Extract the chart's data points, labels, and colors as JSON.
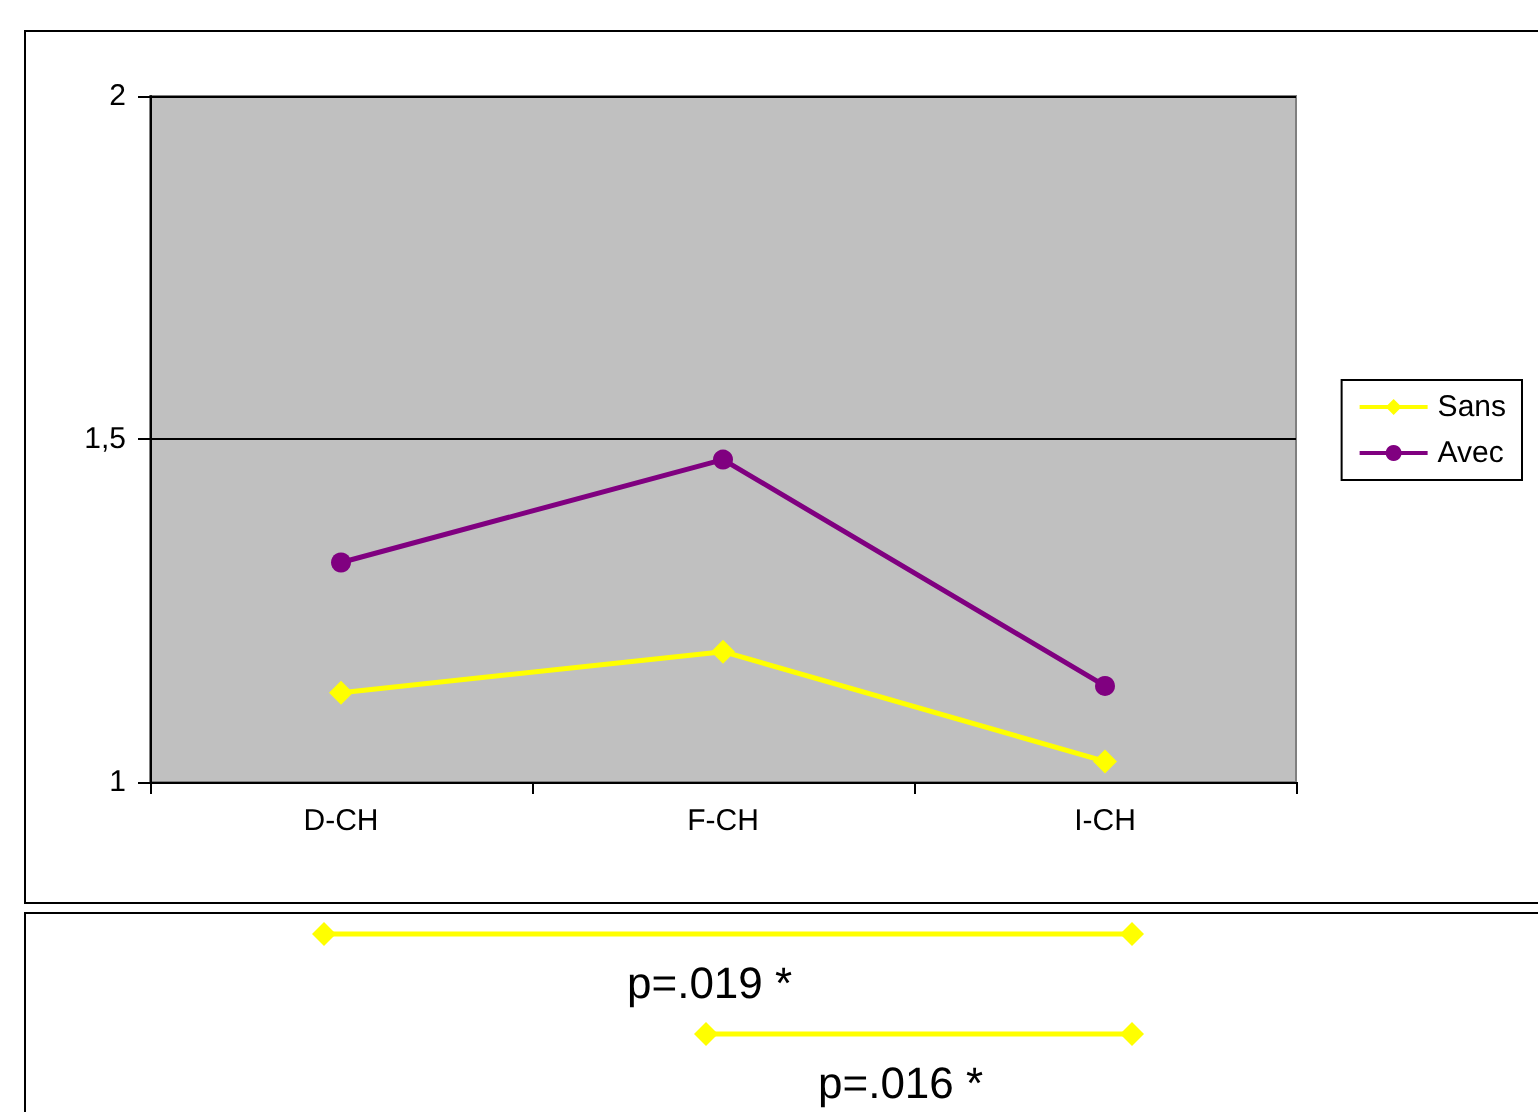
{
  "chart_data": {
    "type": "line",
    "categories": [
      "D-CH",
      "F-CH",
      "I-CH"
    ],
    "series": [
      {
        "name": "Sans",
        "color": "#ffff00",
        "marker": "diamond",
        "values": [
          1.13,
          1.19,
          1.03
        ]
      },
      {
        "name": "Avec",
        "color": "#800080",
        "marker": "circle",
        "values": [
          1.32,
          1.47,
          1.14
        ]
      }
    ],
    "ylim": [
      1,
      2
    ],
    "yticks": [
      {
        "value": 1,
        "label": "1"
      },
      {
        "value": 1.5,
        "label": "1,5"
      },
      {
        "value": 2,
        "label": "2"
      }
    ],
    "grid": "y",
    "legend": "right",
    "line_style": "solid",
    "annotations": [
      "p=.019 *",
      "p=.016 *"
    ]
  }
}
